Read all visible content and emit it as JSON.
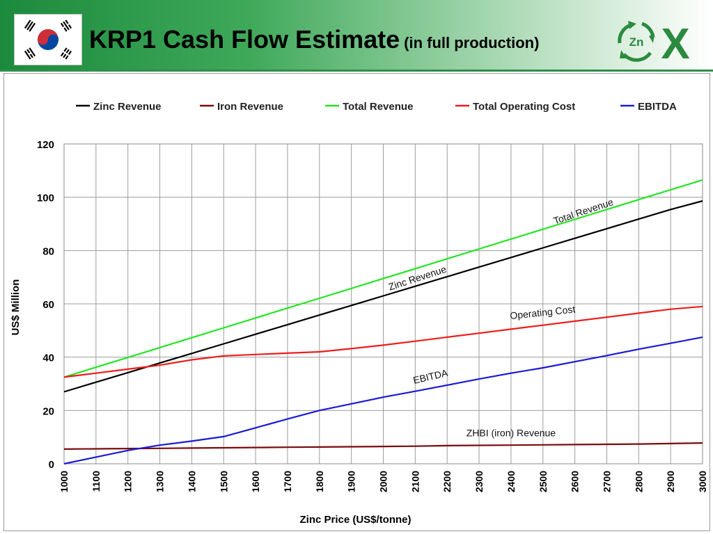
{
  "header": {
    "title": "KRP1 Cash Flow Estimate",
    "subtitle": "(in full production)",
    "logo_text": "Zn",
    "logo_letter": "X"
  },
  "chart_data": {
    "type": "line",
    "x": [
      1000,
      1100,
      1200,
      1300,
      1400,
      1500,
      1600,
      1700,
      1800,
      1900,
      2000,
      2100,
      2200,
      2300,
      2400,
      2500,
      2600,
      2700,
      2800,
      2900,
      3000
    ],
    "series": [
      {
        "name": "Zinc Revenue",
        "color": "#000000",
        "values": [
          27,
          30.6,
          34.2,
          37.8,
          41.4,
          45,
          48.6,
          52.2,
          55.8,
          59.4,
          63,
          66.6,
          70.2,
          73.8,
          77.4,
          81,
          84.6,
          88.2,
          91.8,
          95.4,
          98.6
        ]
      },
      {
        "name": "Iron Revenue",
        "color": "#7b0a0a",
        "values": [
          5.5,
          5.6,
          5.7,
          5.8,
          5.9,
          6,
          6.1,
          6.2,
          6.3,
          6.4,
          6.5,
          6.6,
          6.8,
          6.9,
          7,
          7.1,
          7.2,
          7.3,
          7.4,
          7.6,
          7.8
        ]
      },
      {
        "name": "Total Revenue",
        "color": "#22e622",
        "values": [
          32.5,
          36.2,
          39.9,
          43.6,
          47.3,
          51,
          54.7,
          58.4,
          62.1,
          65.8,
          69.5,
          73.2,
          76.9,
          80.6,
          84.3,
          88,
          91.7,
          95.4,
          99.1,
          102.8,
          106.5
        ]
      },
      {
        "name": "Total Operating Cost",
        "color": "#ee1c1c",
        "values": [
          32.5,
          34,
          35.5,
          37,
          39,
          40.5,
          41,
          41.5,
          42,
          43.2,
          44.5,
          46,
          47.5,
          49,
          50.5,
          52,
          53.5,
          55,
          56.5,
          58,
          59
        ]
      },
      {
        "name": "EBITDA",
        "color": "#1a1ad6",
        "values": [
          0,
          2.5,
          5,
          7,
          8.5,
          10.2,
          13.5,
          16.8,
          20,
          22.5,
          25,
          27.2,
          29.5,
          31.8,
          34,
          36,
          38.3,
          40.6,
          43,
          45.2,
          47.5
        ]
      }
    ],
    "xlabel": "Zinc Price (US$/tonne)",
    "ylabel": "US$ Million",
    "xlim": [
      1000,
      3000
    ],
    "ylim": [
      0,
      120
    ],
    "y_ticks": [
      0,
      20,
      40,
      60,
      80,
      100,
      120
    ],
    "grid": true,
    "legend_position": "top",
    "annotations": [
      {
        "text": "Total  Revenue",
        "x": 2630,
        "y": 93.5,
        "angle": -18.5
      },
      {
        "text": "Zinc Revenue",
        "x": 2110,
        "y": 68.5,
        "angle": -18
      },
      {
        "text": "Operating Cost",
        "x": 2500,
        "y": 55.5,
        "angle": -6
      },
      {
        "text": "EBITDA",
        "x": 2150,
        "y": 31.5,
        "angle": -13
      },
      {
        "text": "ZHBI (iron) Revenue",
        "x": 2400,
        "y": 10.3,
        "angle": 0
      }
    ]
  }
}
